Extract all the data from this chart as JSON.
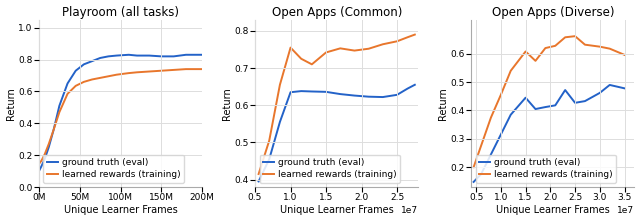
{
  "subplot_a": {
    "title": "Playroom (all tasks)",
    "xlabel": "Unique Learner Frames",
    "ylabel": "Return",
    "xlim": [
      0,
      200000000.0
    ],
    "ylim": [
      0.0,
      1.05
    ],
    "xticks": [
      0,
      50000000.0,
      100000000.0,
      150000000.0,
      200000000.0
    ],
    "xtick_labels": [
      "0M",
      "50M",
      "100M",
      "150M",
      "200M"
    ],
    "yticks": [
      0.0,
      0.2,
      0.4,
      0.6,
      0.8,
      1.0
    ],
    "blue_x": [
      0,
      3000000.0,
      7000000.0,
      12000000.0,
      18000000.0,
      25000000.0,
      35000000.0,
      45000000.0,
      55000000.0,
      65000000.0,
      75000000.0,
      85000000.0,
      95000000.0,
      110000000.0,
      120000000.0,
      135000000.0,
      150000000.0,
      165000000.0,
      180000000.0,
      190000000.0,
      200000000.0
    ],
    "blue_y": [
      0.1,
      0.13,
      0.175,
      0.25,
      0.36,
      0.51,
      0.65,
      0.73,
      0.77,
      0.79,
      0.81,
      0.82,
      0.825,
      0.83,
      0.825,
      0.825,
      0.82,
      0.82,
      0.83,
      0.83,
      0.83
    ],
    "orange_x": [
      0,
      3000000.0,
      7000000.0,
      12000000.0,
      18000000.0,
      25000000.0,
      35000000.0,
      45000000.0,
      55000000.0,
      65000000.0,
      75000000.0,
      85000000.0,
      95000000.0,
      110000000.0,
      120000000.0,
      135000000.0,
      150000000.0,
      165000000.0,
      180000000.0,
      190000000.0,
      200000000.0
    ],
    "orange_y": [
      0.145,
      0.165,
      0.205,
      0.27,
      0.36,
      0.47,
      0.585,
      0.635,
      0.66,
      0.675,
      0.685,
      0.695,
      0.705,
      0.715,
      0.72,
      0.725,
      0.73,
      0.735,
      0.74,
      0.74,
      0.74
    ]
  },
  "subplot_b": {
    "title": "Open Apps (Common)",
    "xlabel": "Unique Learner Frames",
    "ylabel": "Return",
    "xlim": [
      5000000.0,
      28000000.0
    ],
    "ylim": [
      0.38,
      0.83
    ],
    "xticks": [
      5000000.0,
      10000000.0,
      15000000.0,
      20000000.0,
      25000000.0
    ],
    "yticks": [
      0.4,
      0.5,
      0.6,
      0.7,
      0.8
    ],
    "blue_x": [
      5500000.0,
      7000000.0,
      8500000.0,
      10000000.0,
      11500000.0,
      13000000.0,
      15000000.0,
      17000000.0,
      19000000.0,
      21000000.0,
      23000000.0,
      25000000.0,
      26500000.0,
      27500000.0
    ],
    "blue_y": [
      0.395,
      0.455,
      0.555,
      0.635,
      0.638,
      0.637,
      0.636,
      0.63,
      0.626,
      0.623,
      0.622,
      0.628,
      0.645,
      0.655
    ],
    "orange_x": [
      5500000.0,
      7000000.0,
      8500000.0,
      10000000.0,
      11500000.0,
      13000000.0,
      15000000.0,
      17000000.0,
      19000000.0,
      21000000.0,
      23000000.0,
      25000000.0,
      26500000.0,
      27500000.0
    ],
    "orange_y": [
      0.415,
      0.505,
      0.655,
      0.755,
      0.725,
      0.71,
      0.742,
      0.753,
      0.747,
      0.752,
      0.764,
      0.772,
      0.783,
      0.79
    ]
  },
  "subplot_c": {
    "title": "Open Apps (Diverse)",
    "xlabel": "Unique Learner Frames",
    "ylabel": "Return",
    "xlim": [
      4000000.0,
      37000000.0
    ],
    "ylim": [
      0.13,
      0.72
    ],
    "xticks": [
      5000000.0,
      10000000.0,
      15000000.0,
      20000000.0,
      25000000.0,
      30000000.0,
      35000000.0
    ],
    "yticks": [
      0.2,
      0.3,
      0.4,
      0.5,
      0.6
    ],
    "blue_x": [
      4500000.0,
      6000000.0,
      8000000.0,
      10000000.0,
      12000000.0,
      15000000.0,
      17000000.0,
      19000000.0,
      21000000.0,
      23000000.0,
      25000000.0,
      27000000.0,
      30000000.0,
      32000000.0,
      35000000.0
    ],
    "blue_y": [
      0.148,
      0.175,
      0.245,
      0.315,
      0.385,
      0.445,
      0.405,
      0.412,
      0.418,
      0.472,
      0.427,
      0.433,
      0.462,
      0.49,
      0.478
    ],
    "orange_x": [
      4500000.0,
      6000000.0,
      8000000.0,
      10000000.0,
      12000000.0,
      15000000.0,
      17000000.0,
      19000000.0,
      21000000.0,
      23000000.0,
      25000000.0,
      27000000.0,
      30000000.0,
      32000000.0,
      35000000.0
    ],
    "orange_y": [
      0.2,
      0.275,
      0.375,
      0.455,
      0.54,
      0.608,
      0.575,
      0.62,
      0.628,
      0.658,
      0.662,
      0.632,
      0.625,
      0.618,
      0.596
    ]
  },
  "legend_labels": [
    "ground truth (eval)",
    "learned rewards (training)"
  ],
  "blue_color": "#2362C8",
  "orange_color": "#E8762C",
  "grid_color": "#dddddd",
  "label_fontsize": 7.0,
  "title_fontsize": 8.5,
  "tick_fontsize": 6.5,
  "legend_fontsize": 6.5
}
